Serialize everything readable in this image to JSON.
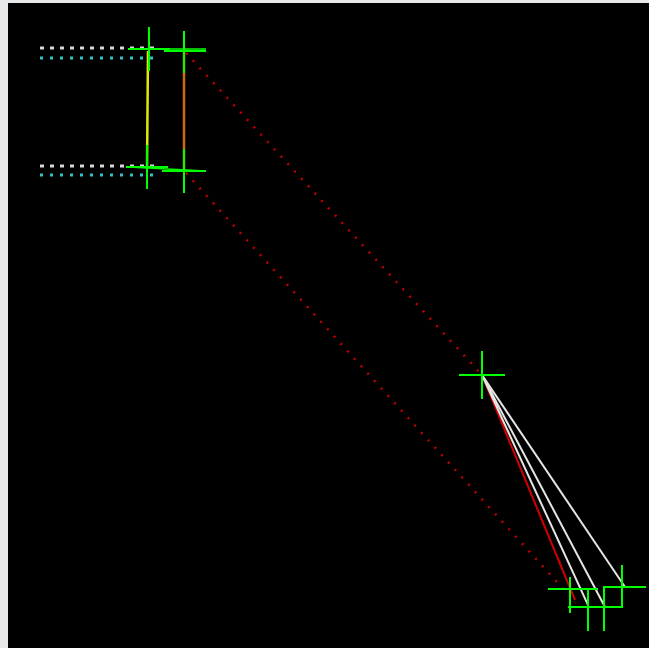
{
  "view": {
    "name": "cad-viewport",
    "background": "#000000",
    "frame_color": "#e6e8ea"
  },
  "colors": {
    "crosshair": "#00ff00",
    "dotted_link": "#c00000",
    "cyan_hatch": "#2ec4c8",
    "white_hatch": "#d8d8d8",
    "yellow_segment": "#e6e600",
    "orange_segment": "#d06a10",
    "white_ray": "#e6e6e6",
    "red_ray": "#d40000"
  },
  "icons": {
    "crosshair_marker": "crosshair-icon",
    "box_marker": "square-marker-icon"
  }
}
